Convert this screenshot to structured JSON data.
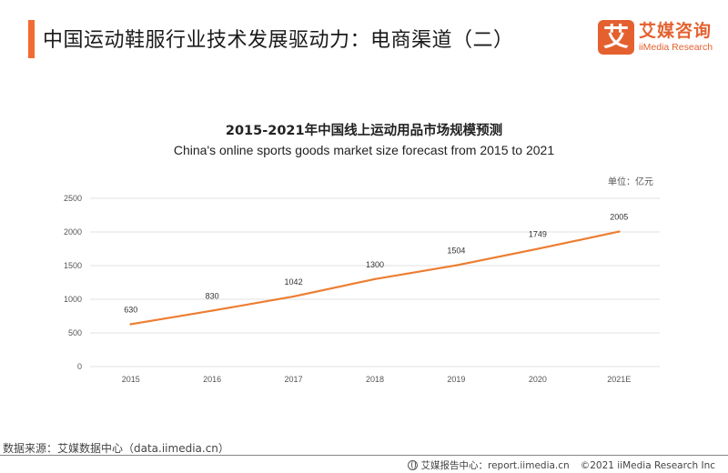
{
  "header": {
    "title": "中国运动鞋服行业技术发展驱动力：电商渠道（二）",
    "accent_color": "#f26a34"
  },
  "logo": {
    "icon_char": "艾",
    "name_cn": "艾媒咨询",
    "name_en": "iiMedia Research",
    "color": "#e4612f"
  },
  "chart_data": {
    "type": "line",
    "title": "2015-2021年中国线上运动用品市场规模预测",
    "subtitle": "China's online sports goods market size forecast from 2015 to 2021",
    "unit": "单位：亿元",
    "categories": [
      "2015",
      "2016",
      "2017",
      "2018",
      "2019",
      "2020",
      "2021E"
    ],
    "series": [
      {
        "name": "中国线上运动用品市场规模",
        "values": [
          630,
          830,
          1042,
          1300,
          1504,
          1749,
          2005
        ],
        "color": "#ed7d31"
      }
    ],
    "y_ticks": [
      0,
      500,
      1000,
      1500,
      2000,
      2500
    ],
    "ylim": [
      0,
      2500
    ],
    "xlabel": "",
    "ylabel": "",
    "grid": true,
    "legend": "none",
    "data_labels": true
  },
  "footer": {
    "source": "数据来源：艾媒数据中心（data.iimedia.cn）",
    "report_center": "艾媒报告中心：report.iimedia.cn",
    "copyright": "©2021  iiMedia Research  Inc"
  }
}
